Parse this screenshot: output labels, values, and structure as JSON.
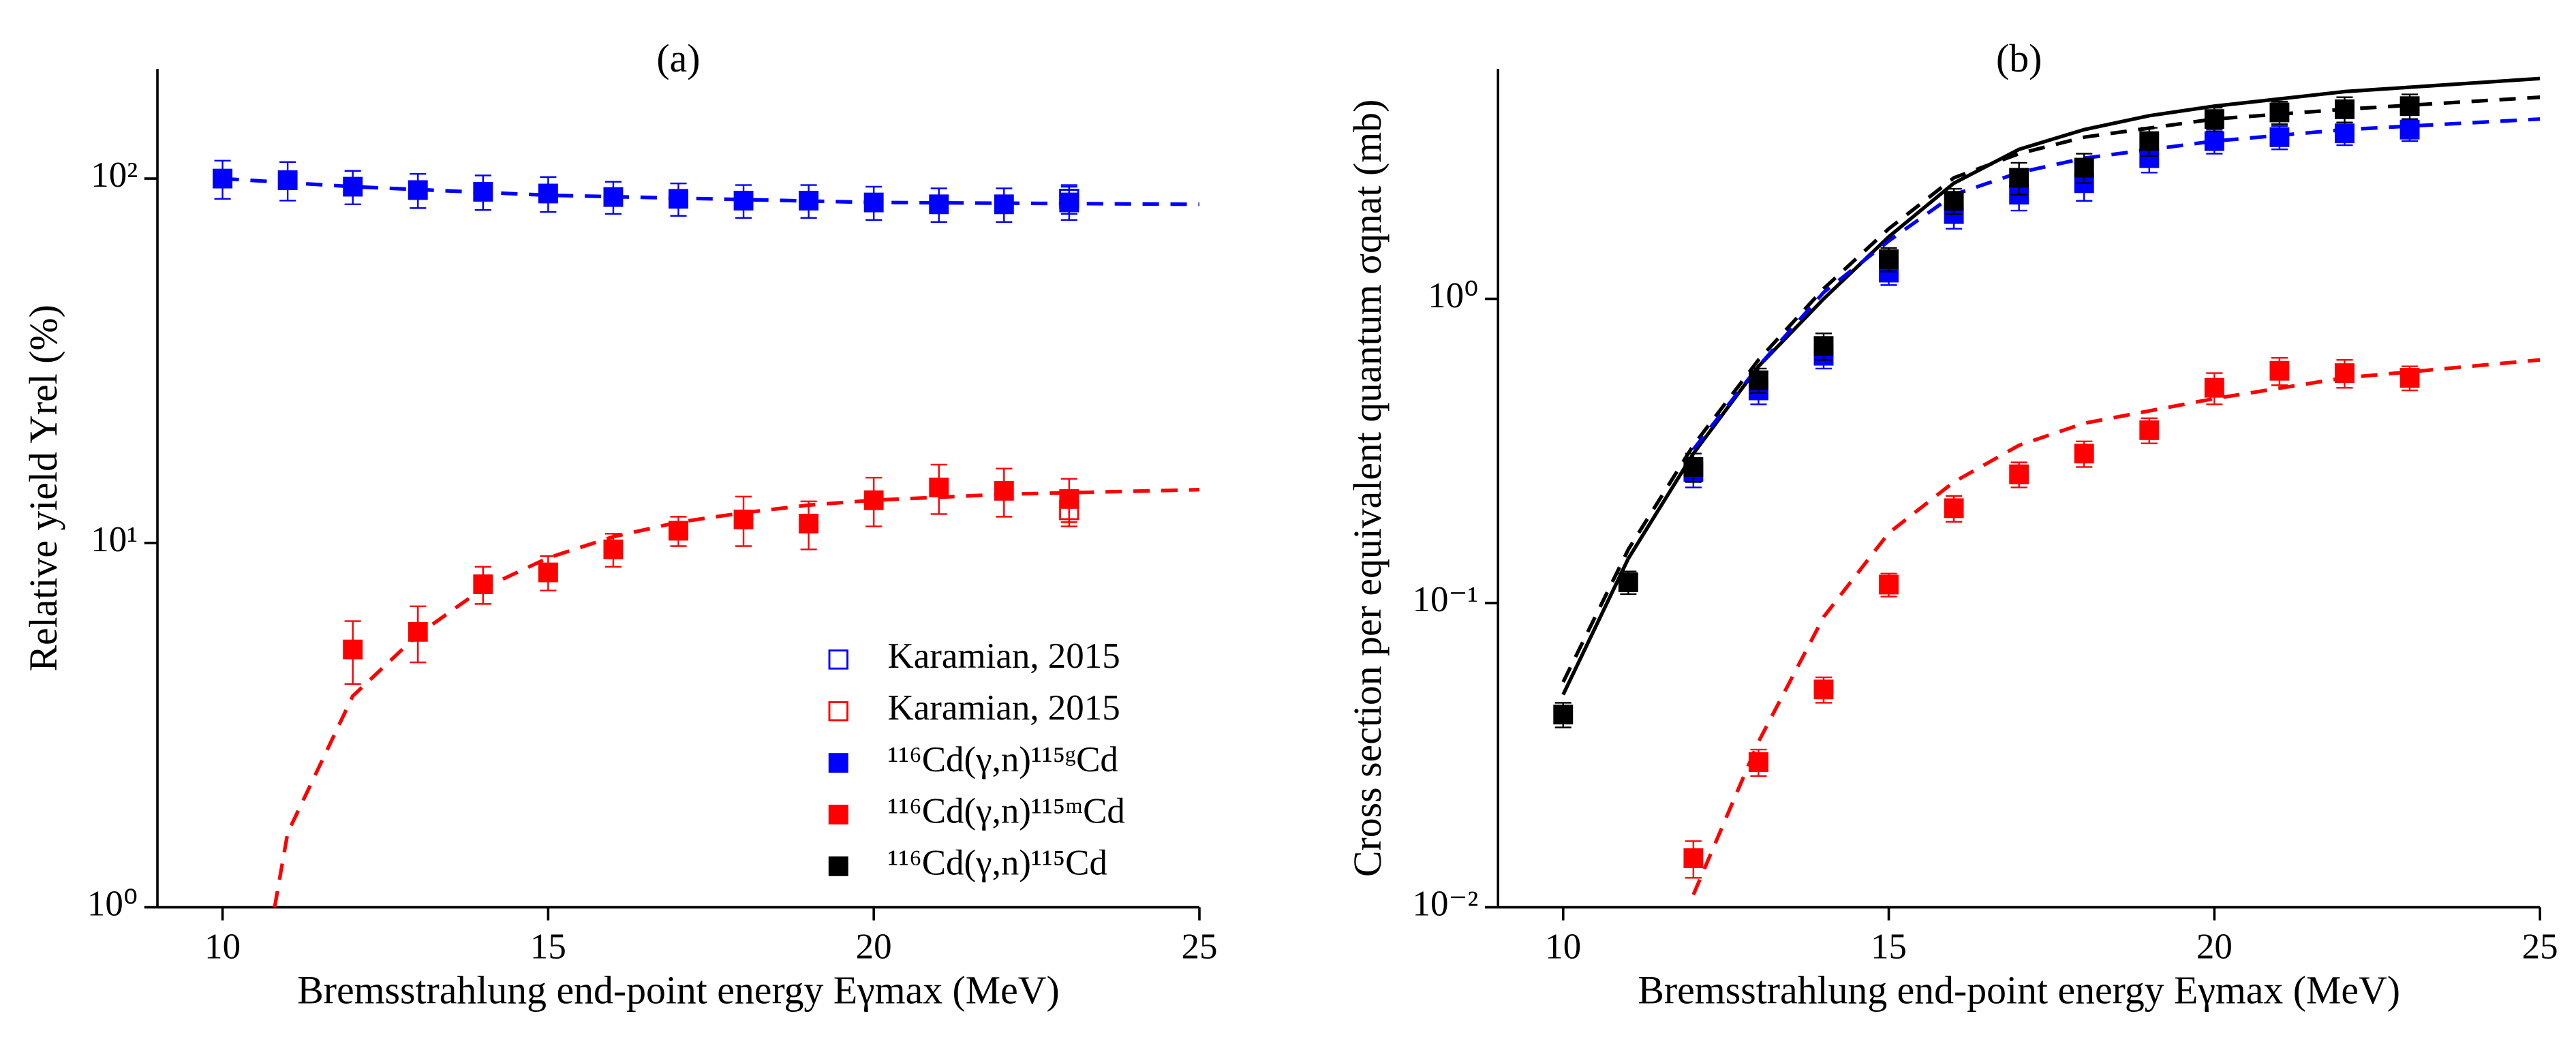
{
  "chart_data": [
    {
      "type": "scatter",
      "title": "(a)",
      "x_label": "Bremsstrahlung end-point energy Eγmax (MeV)",
      "y_label": "Relative yield Yrel (%)",
      "xlim": [
        9,
        25
      ],
      "xticks": [
        10,
        15,
        20,
        25
      ],
      "ylim": [
        1,
        200
      ],
      "log_y": true,
      "yticks": [
        {
          "value": 1,
          "label": "10⁰"
        },
        {
          "value": 10,
          "label": "10¹"
        },
        {
          "value": 100,
          "label": "10²"
        }
      ],
      "legend": "lower right",
      "series": [
        {
          "name": "Karamian, 2015",
          "color": "#0000ff",
          "marker": "open",
          "x": [
            23
          ],
          "values": [
            88
          ],
          "errors": [
            8
          ]
        },
        {
          "name": "Karamian, 2015",
          "color": "#ff0000",
          "marker": "open",
          "x": [
            23
          ],
          "values": [
            12.3
          ],
          "errors": [
            1.2
          ]
        },
        {
          "name": "¹¹⁶Cd(γ,n)¹¹⁵ᵍCd",
          "color": "#0000ff",
          "marker": "filled",
          "x": [
            10,
            11,
            12,
            13,
            14,
            15,
            16,
            17,
            18,
            19,
            20,
            21,
            22,
            23
          ],
          "values": [
            100,
            99,
            95,
            93,
            92,
            91,
            89,
            88,
            87,
            87,
            86,
            85,
            85,
            86
          ],
          "errors": [
            12,
            12,
            10,
            10,
            10,
            10,
            9,
            9,
            9,
            9,
            9,
            9,
            9,
            9
          ]
        },
        {
          "name": "¹¹⁶Cd(γ,n)¹¹⁵ᵐCd",
          "color": "#ff0000",
          "marker": "filled",
          "x": [
            12,
            13,
            14,
            15,
            16,
            17,
            18,
            19,
            20,
            21,
            22,
            23
          ],
          "values": [
            5.1,
            5.7,
            7.7,
            8.3,
            9.6,
            10.8,
            11.6,
            11.3,
            13.1,
            14.2,
            13.9,
            13.2
          ],
          "errors": [
            1.0,
            1.0,
            0.9,
            0.9,
            1.0,
            1.0,
            1.8,
            1.7,
            2.0,
            2.2,
            2.1,
            1.8
          ]
        }
      ],
      "lines": [
        {
          "color": "#0000ff",
          "dash": true,
          "x": [
            10,
            12,
            15,
            20,
            25
          ],
          "values": [
            100,
            95,
            90,
            86,
            85
          ]
        },
        {
          "color": "#ff0000",
          "dash": true,
          "x": [
            10.8,
            11,
            12,
            13,
            14,
            15,
            16,
            17,
            18,
            19,
            20,
            22,
            25
          ],
          "values": [
            1,
            1.6,
            3.8,
            5.6,
            7.5,
            9.1,
            10.4,
            11.4,
            12.1,
            12.7,
            13.1,
            13.6,
            14.0
          ]
        }
      ]
    },
    {
      "type": "scatter",
      "title": "(b)",
      "x_label": "Bremsstrahlung end-point energy Eγmax (MeV)",
      "y_label": "Cross section per equivalent quantum σqnat (mb)",
      "xlim": [
        9,
        25
      ],
      "xticks": [
        10,
        15,
        20,
        25
      ],
      "ylim": [
        0.01,
        5.7
      ],
      "log_y": true,
      "yticks": [
        {
          "value": 0.01,
          "label": "10⁻²"
        },
        {
          "value": 0.1,
          "label": "10⁻¹"
        },
        {
          "value": 1,
          "label": "10⁰"
        }
      ],
      "series": [
        {
          "color": "#0000ff",
          "marker": "filled",
          "x": [
            12,
            13,
            14,
            15,
            16,
            17,
            18,
            19,
            20,
            21,
            22,
            23
          ],
          "values": [
            0.27,
            0.5,
            0.65,
            1.22,
            1.9,
            2.2,
            2.4,
            2.9,
            3.3,
            3.4,
            3.5,
            3.6
          ],
          "errors": [
            0.03,
            0.05,
            0.06,
            0.11,
            0.2,
            0.25,
            0.3,
            0.3,
            0.3,
            0.3,
            0.3,
            0.3
          ]
        },
        {
          "color": "#ff0000",
          "marker": "filled",
          "x": [
            12,
            13,
            14,
            15,
            16,
            17,
            18,
            19,
            20,
            21,
            22,
            23
          ],
          "values": [
            0.0145,
            0.03,
            0.052,
            0.115,
            0.205,
            0.265,
            0.31,
            0.37,
            0.51,
            0.58,
            0.57,
            0.55
          ],
          "errors": [
            0.002,
            0.003,
            0.005,
            0.01,
            0.02,
            0.025,
            0.03,
            0.035,
            0.06,
            0.06,
            0.06,
            0.05
          ]
        },
        {
          "name": "¹¹⁶Cd(γ,n)¹¹⁵Cd",
          "color": "#000000",
          "marker": "filled",
          "x": [
            10,
            11,
            12,
            13,
            14,
            15,
            16,
            17,
            18,
            19,
            20,
            21,
            22,
            23
          ],
          "values": [
            0.043,
            0.117,
            0.28,
            0.54,
            0.7,
            1.35,
            2.1,
            2.5,
            2.7,
            3.3,
            3.9,
            4.1,
            4.2,
            4.3
          ],
          "errors": [
            0.004,
            0.01,
            0.03,
            0.05,
            0.07,
            0.12,
            0.2,
            0.3,
            0.3,
            0.35,
            0.35,
            0.35,
            0.4,
            0.4
          ]
        }
      ],
      "lines": [
        {
          "color": "#000000",
          "dash": false,
          "x": [
            10,
            11,
            12,
            13,
            14,
            15,
            16,
            17,
            18,
            19,
            20,
            22,
            25
          ],
          "values": [
            0.05,
            0.14,
            0.31,
            0.6,
            1.0,
            1.6,
            2.4,
            3.1,
            3.6,
            4.0,
            4.3,
            4.8,
            5.3
          ]
        },
        {
          "color": "#000000",
          "dash": true,
          "x": [
            10,
            11,
            12,
            13,
            14,
            15,
            16,
            17,
            18,
            20,
            22,
            25
          ],
          "values": [
            0.055,
            0.15,
            0.33,
            0.63,
            1.08,
            1.7,
            2.5,
            3.0,
            3.4,
            3.9,
            4.2,
            4.6
          ]
        },
        {
          "color": "#0000ff",
          "dash": true,
          "x": [
            12,
            13,
            14,
            15,
            16,
            17,
            18,
            20,
            22,
            25
          ],
          "values": [
            0.32,
            0.6,
            1.05,
            1.55,
            2.2,
            2.6,
            2.9,
            3.3,
            3.6,
            3.9
          ]
        },
        {
          "color": "#ff0000",
          "dash": true,
          "x": [
            12,
            13,
            14,
            15,
            16,
            17,
            18,
            20,
            22,
            25
          ],
          "values": [
            0.011,
            0.035,
            0.09,
            0.17,
            0.25,
            0.33,
            0.39,
            0.47,
            0.55,
            0.63
          ]
        }
      ]
    }
  ]
}
